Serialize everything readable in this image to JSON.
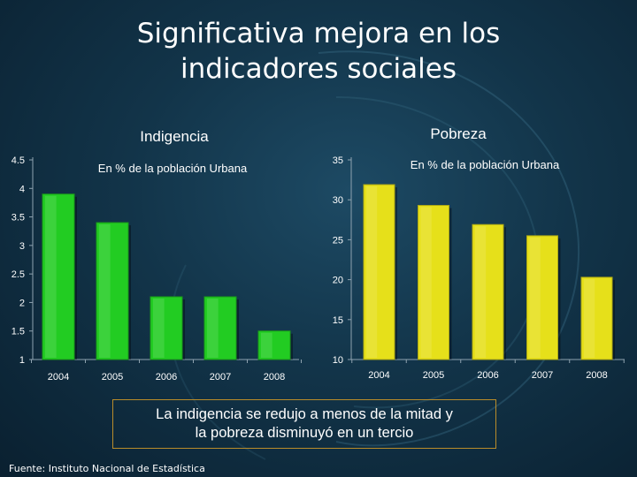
{
  "slide": {
    "title_lines": [
      "Significativa mejora en los",
      "indicadores sociales"
    ],
    "summary_lines": [
      "La indigencia se redujo a menos de la mitad y",
      "la pobreza disminuyó en un tercio"
    ],
    "source": "Fuente: Instituto Nacional de Estadística"
  },
  "chart_data": [
    {
      "type": "bar",
      "title": "Indigencia",
      "subtitle": "En % de la población Urbana",
      "categories": [
        "2004",
        "2005",
        "2006",
        "2007",
        "2008"
      ],
      "values": [
        3.9,
        3.4,
        2.1,
        2.1,
        1.5
      ],
      "ylim": [
        1,
        4.5
      ],
      "yticks": [
        "1",
        "1.5",
        "2",
        "2.5",
        "3",
        "3.5",
        "4",
        "4.5"
      ],
      "color": "#22cc22",
      "grid": false
    },
    {
      "type": "bar",
      "title": "Pobreza",
      "subtitle": "En % de la población Urbana",
      "categories": [
        "2004",
        "2005",
        "2006",
        "2007",
        "2008"
      ],
      "values": [
        31.9,
        29.3,
        26.9,
        25.5,
        20.3
      ],
      "ylim": [
        10,
        35
      ],
      "yticks": [
        "10",
        "15",
        "20",
        "25",
        "30",
        "35"
      ],
      "color": "#e6e01a",
      "grid": false
    }
  ]
}
